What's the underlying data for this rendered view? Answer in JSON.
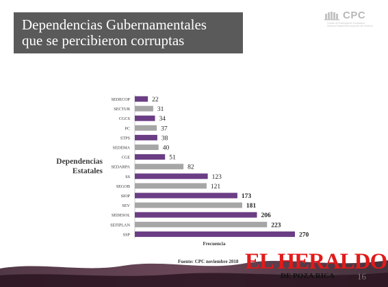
{
  "slide": {
    "title_line1": "Dependencias Gubernamentales",
    "title_line2": "que se percibieron corruptas",
    "page_number": "16",
    "source": "Fuente: CPC noviembre 2018"
  },
  "logo": {
    "name": "CPC",
    "subtitle_line1": "Comité de Participación Ciudadana",
    "subtitle_line2": "Sistema Estatal Anticorrupción de Veracruz"
  },
  "watermark": {
    "main": "EL HERALDO",
    "sub": "DE POZA RICA"
  },
  "colors": {
    "title_bg": "#5a5a5a",
    "purple": "#6b3d85",
    "gray": "#a6a6a6",
    "watermark_red": "#e11a1a",
    "decor_dark": "#4a2a3a"
  },
  "chart_data": {
    "type": "bar",
    "orientation": "horizontal",
    "y_axis_title_line1": "Dependencias",
    "y_axis_title_line2": "Estatales",
    "xlabel": "Frecuencia",
    "xlim": [
      0,
      270
    ],
    "grid": false,
    "legend": false,
    "categories": [
      "SEDECOP",
      "SECTUR",
      "CGCS",
      "PC",
      "STPS",
      "SEDEMA",
      "CGE",
      "SEDARPA",
      "SS",
      "SEGOB",
      "SIOP",
      "SEV",
      "SEDESOL",
      "SEFIPLAN",
      "SSP"
    ],
    "values": [
      22,
      31,
      34,
      37,
      38,
      40,
      51,
      82,
      123,
      121,
      173,
      181,
      206,
      223,
      270
    ],
    "colors": [
      "purple",
      "gray",
      "purple",
      "gray",
      "purple",
      "gray",
      "purple",
      "gray",
      "purple",
      "gray",
      "purple",
      "gray",
      "purple",
      "gray",
      "purple"
    ],
    "bold_value_labels": [
      false,
      false,
      false,
      false,
      false,
      false,
      false,
      false,
      false,
      false,
      true,
      true,
      true,
      true,
      true
    ]
  }
}
